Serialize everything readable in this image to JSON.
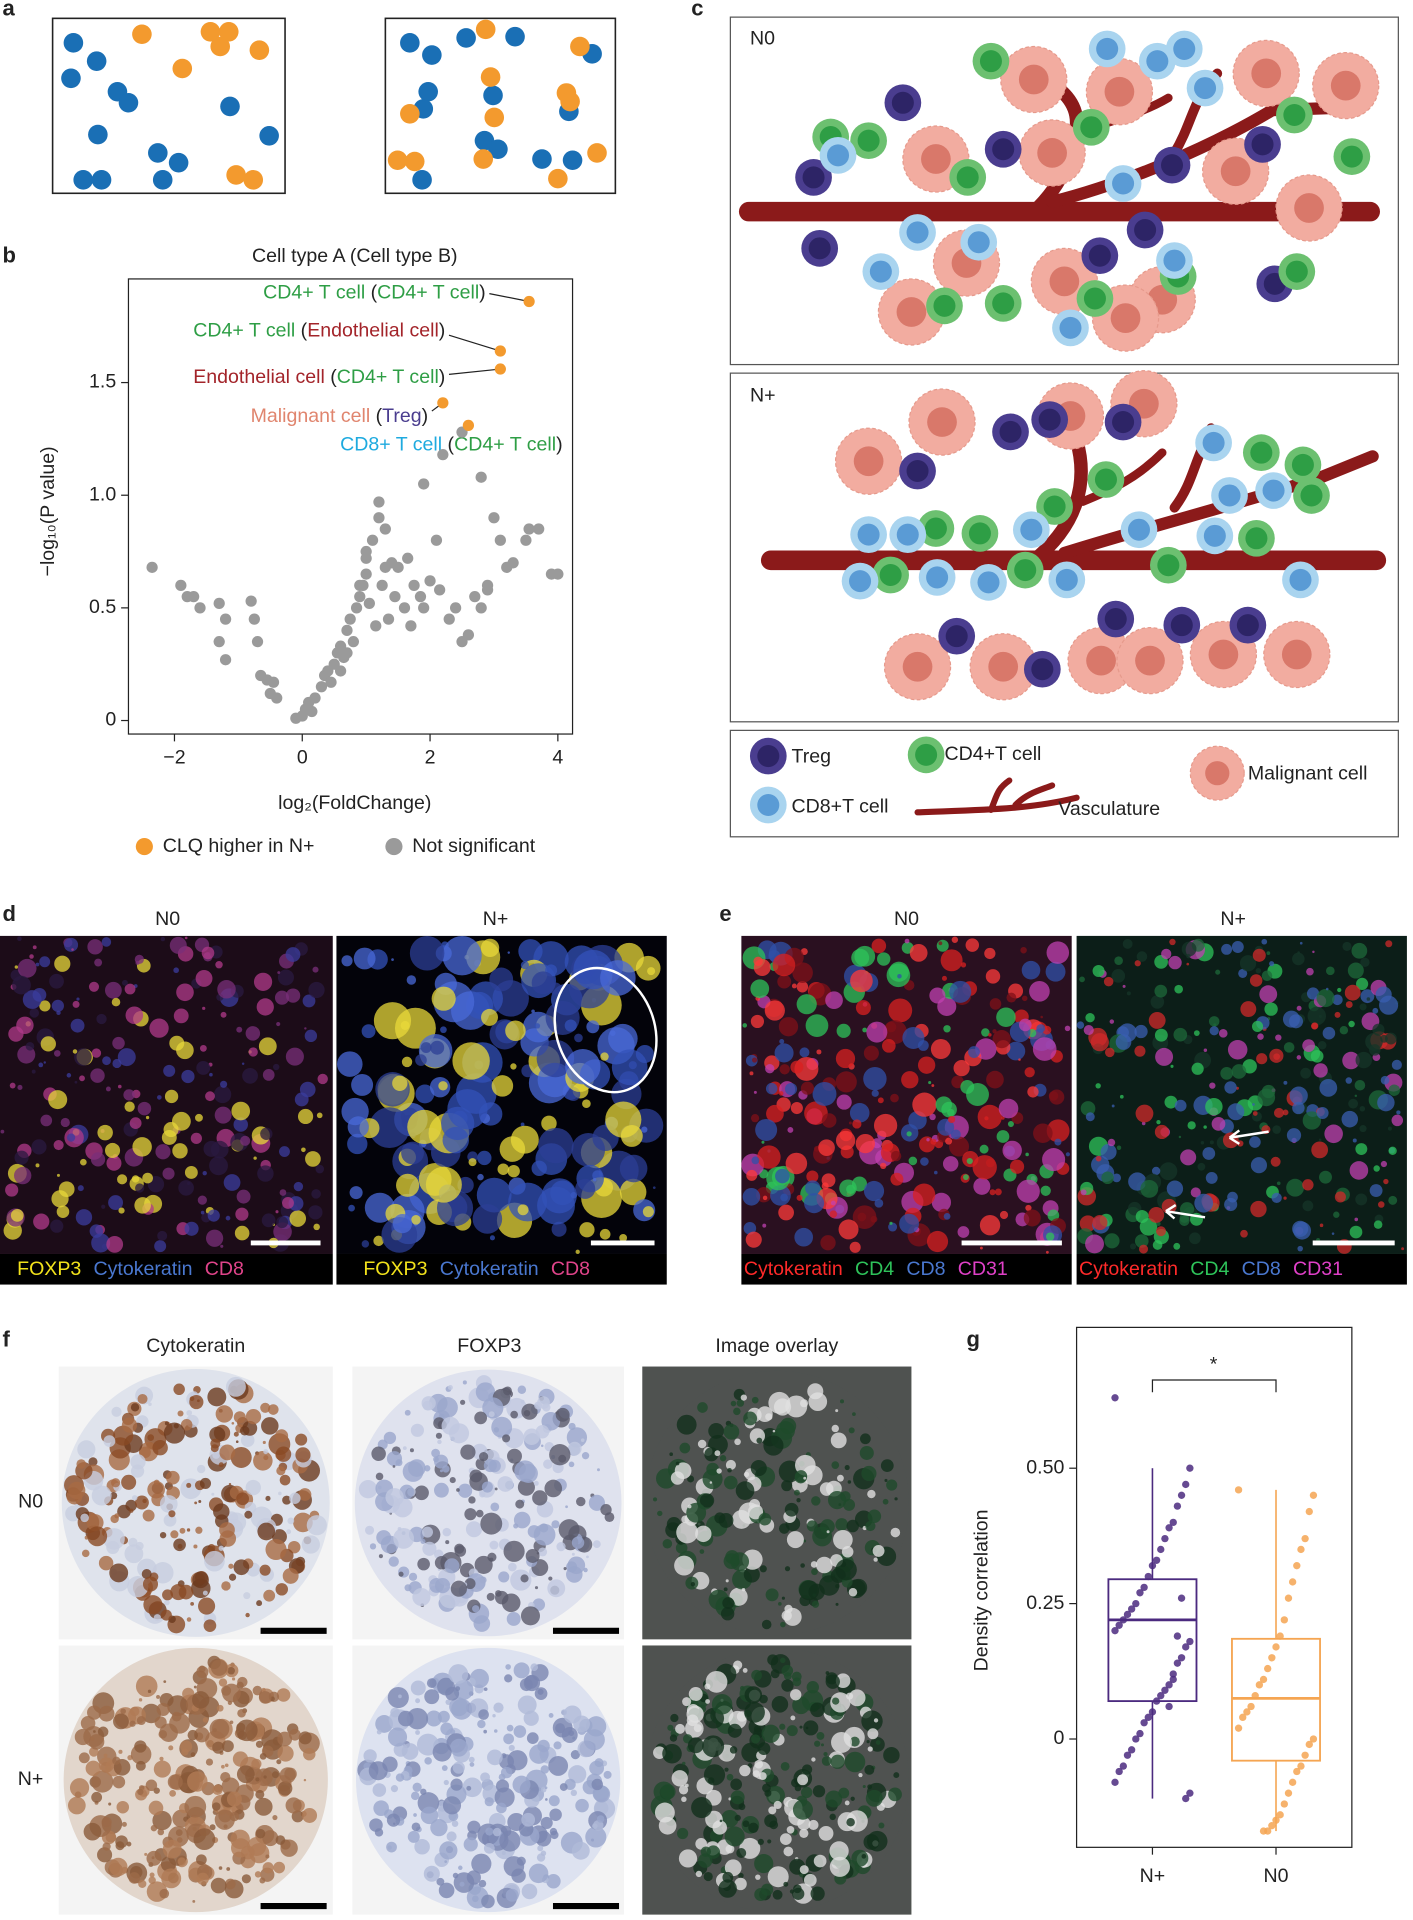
{
  "panel_labels": [
    "a",
    "b",
    "c",
    "d",
    "e",
    "f",
    "g"
  ],
  "chart_data": [
    {
      "type": "scatter",
      "title": "Cell type A (Cell type B)",
      "x_label": "log₂(FoldChange)",
      "y_label": "−log₁₀(P value)",
      "xlim": [
        -2.72,
        4.23
      ],
      "ylim": [
        -0.06,
        1.96
      ],
      "xticks": [
        {
          "value": -2,
          "label": "−2"
        },
        0,
        2,
        4
      ],
      "yticks": [
        0,
        0.5,
        {
          "value": 1,
          "label": "1.0"
        },
        1.5
      ],
      "series": [
        {
          "name": "CLQ higher in N+",
          "color": "#f39a2e",
          "x": [
            3.55,
            3.1,
            3.1,
            2.2,
            2.6
          ],
          "y": [
            1.86,
            1.64,
            1.56,
            1.41,
            1.31
          ]
        },
        {
          "name": "Not significant",
          "color": "#9a9a9a",
          "x": [
            -2.35,
            -1.9,
            -1.8,
            -1.7,
            -1.6,
            -1.3,
            -1.2,
            -1.3,
            -1.2,
            -0.8,
            -0.75,
            -0.7,
            -0.65,
            -0.55,
            -0.45,
            -0.5,
            -0.4,
            -0.1,
            0,
            0.05,
            0.1,
            0.15,
            0.2,
            0.3,
            0.35,
            0.4,
            0.45,
            0.5,
            0.55,
            0.6,
            0.65,
            0.7,
            0.75,
            0.8,
            0.85,
            0.9,
            0.95,
            1.0,
            1.0,
            1.05,
            1.1,
            1.15,
            1.2,
            1.25,
            1.3,
            1.35,
            1.4,
            1.45,
            1.5,
            1.6,
            1.65,
            1.7,
            1.75,
            1.85,
            1.9,
            2.0,
            2.1,
            2.15,
            2.3,
            2.4,
            2.5,
            2.6,
            2.7,
            2.2,
            2.5,
            2.8,
            3.0,
            3.1,
            3.2,
            3.3,
            3.5,
            3.55,
            3.7,
            3.9,
            4.0,
            2.8,
            2.9,
            1.0,
            0.9,
            0.7,
            0.6,
            1.9,
            1.2,
            2.9,
            1.3
          ],
          "y": [
            0.68,
            0.6,
            0.55,
            0.55,
            0.5,
            0.52,
            0.45,
            0.35,
            0.27,
            0.53,
            0.45,
            0.35,
            0.2,
            0.18,
            0.17,
            0.12,
            0.1,
            0.01,
            0.02,
            0.05,
            0.08,
            0.04,
            0.1,
            0.15,
            0.2,
            0.22,
            0.17,
            0.25,
            0.3,
            0.33,
            0.28,
            0.4,
            0.45,
            0.35,
            0.5,
            0.55,
            0.6,
            0.65,
            0.72,
            0.52,
            0.8,
            0.42,
            0.9,
            0.6,
            0.85,
            0.45,
            0.7,
            0.55,
            0.68,
            0.5,
            0.72,
            0.42,
            0.6,
            0.55,
            0.5,
            0.62,
            0.8,
            0.58,
            0.45,
            0.5,
            0.35,
            0.38,
            0.55,
            1.18,
            1.28,
            1.08,
            0.9,
            0.8,
            0.68,
            0.7,
            0.8,
            0.85,
            0.85,
            0.65,
            0.65,
            0.5,
            0.58,
            0.75,
            0.6,
            0.3,
            0.22,
            1.05,
            0.97,
            0.6,
            0.68
          ]
        }
      ],
      "annotations": [
        {
          "parts": [
            {
              "text": "CD4+ T cell",
              "color": "#2e9e45"
            },
            {
              "text": " (",
              "color": "#222222"
            },
            {
              "text": "CD4+ T cell",
              "color": "#2e9e45"
            },
            {
              "text": ")",
              "color": "#222222"
            }
          ]
        },
        {
          "parts": [
            {
              "text": "CD4+ T cell",
              "color": "#2e9e45"
            },
            {
              "text": " (",
              "color": "#222222"
            },
            {
              "text": "Endothelial cell",
              "color": "#a3242a"
            },
            {
              "text": ")",
              "color": "#222222"
            }
          ]
        },
        {
          "parts": [
            {
              "text": "Endothelial cell",
              "color": "#a3242a"
            },
            {
              "text": " (",
              "color": "#222222"
            },
            {
              "text": "CD4+ T cell",
              "color": "#2e9e45"
            },
            {
              "text": ")",
              "color": "#222222"
            }
          ]
        },
        {
          "parts": [
            {
              "text": "Malignant cell",
              "color": "#e0856e"
            },
            {
              "text": " (",
              "color": "#222222"
            },
            {
              "text": "Treg",
              "color": "#4a3d8f"
            },
            {
              "text": ")",
              "color": "#222222"
            }
          ]
        },
        {
          "parts": [
            {
              "text": "CD8+ T cell",
              "color": "#1eaadf"
            },
            {
              "text": " (",
              "color": "#222222"
            },
            {
              "text": "CD4+ T cell",
              "color": "#2e9e45"
            },
            {
              "text": ")",
              "color": "#222222"
            }
          ]
        }
      ]
    },
    {
      "type": "box",
      "y_label": "Density correlation",
      "categories": [
        "N+",
        "N0"
      ],
      "colors": [
        "#4b2a7f",
        "#f5a552"
      ],
      "ylim": [
        -0.2,
        0.76
      ],
      "yticks": [
        0,
        0.25,
        {
          "value": 0.5,
          "label": "0.50"
        }
      ],
      "significance": "*",
      "boxes": [
        {
          "whisker_low": -0.11,
          "q1": 0.07,
          "median": 0.22,
          "q3": 0.295,
          "whisker_high": 0.5
        },
        {
          "whisker_low": -0.17,
          "q1": -0.04,
          "median": 0.075,
          "q3": 0.185,
          "whisker_high": 0.46
        }
      ],
      "points": [
        [
          0.63,
          0.5,
          0.47,
          0.45,
          0.43,
          0.4,
          0.39,
          0.37,
          0.35,
          0.33,
          0.32,
          0.3,
          0.28,
          0.27,
          0.25,
          0.24,
          0.23,
          0.22,
          0.21,
          0.2,
          0.18,
          0.17,
          0.15,
          0.14,
          0.12,
          0.1,
          0.09,
          0.08,
          0.07,
          0.05,
          0.04,
          0.03,
          0.01,
          0,
          -0.02,
          -0.03,
          -0.05,
          -0.06,
          -0.08,
          -0.1,
          -0.11,
          0.26,
          0.19,
          0.11,
          0.06
        ],
        [
          0.46,
          0.45,
          0.42,
          0.37,
          0.35,
          0.32,
          0.29,
          0.26,
          0.22,
          0.19,
          0.17,
          0.15,
          0.13,
          0.11,
          0.1,
          0.08,
          0.06,
          0.05,
          0.04,
          0.02,
          0,
          -0.01,
          -0.03,
          -0.05,
          -0.06,
          -0.08,
          -0.1,
          -0.12,
          -0.14,
          -0.15,
          -0.16,
          -0.17,
          -0.17
        ]
      ]
    }
  ],
  "diagram_c": {
    "panels": [
      "N0",
      "N+"
    ],
    "legend": {
      "treg": "Treg",
      "cd4": "CD4+T cell",
      "cd8": "CD8+T cell",
      "vasculature": "Vasculature",
      "malignant": "Malignant cell"
    }
  },
  "panel_d": {
    "titles": [
      "N0",
      "N+"
    ],
    "channels": [
      {
        "text": "FOXP3",
        "color": "#f2e21b"
      },
      {
        "text": "Cytokeratin",
        "color": "#4a78d0"
      },
      {
        "text": "CD8",
        "color": "#e0448a"
      }
    ]
  },
  "panel_e": {
    "titles": [
      "N0",
      "N+"
    ],
    "channels": [
      {
        "text": "Cytokeratin",
        "color": "#ff2a2a"
      },
      {
        "text": "CD4",
        "color": "#2ec35a"
      },
      {
        "text": "CD8",
        "color": "#4a78d0"
      },
      {
        "text": "CD31",
        "color": "#e040c8"
      }
    ]
  },
  "panel_f": {
    "columns": [
      "Cytokeratin",
      "FOXP3",
      "Image overlay"
    ],
    "rows": [
      "N0",
      "N+"
    ]
  }
}
